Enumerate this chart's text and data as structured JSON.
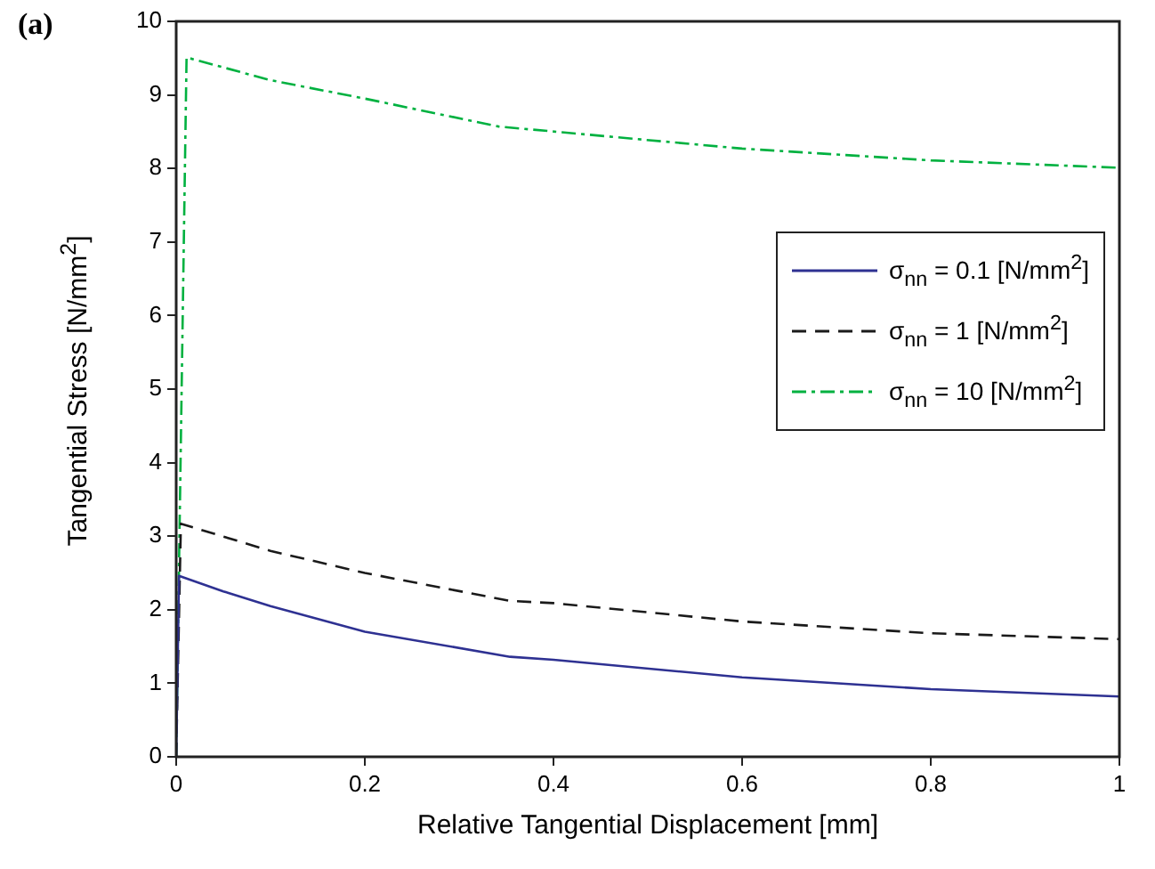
{
  "chart_data": {
    "type": "line",
    "xlabel": "Relative Tangential Displacement [mm]",
    "ylabel": "Tangential Stress [N/mm$^{2}$]",
    "annotations": [
      "(a)"
    ],
    "xlim": [
      0,
      1
    ],
    "ylim": [
      0,
      10
    ],
    "xticks": [
      0,
      0.2,
      0.4,
      0.6,
      0.8,
      1
    ],
    "yticks": [
      0,
      1,
      2,
      3,
      4,
      5,
      6,
      7,
      8,
      9,
      10
    ],
    "grid": false,
    "legend": "right",
    "marker": "none",
    "series": [
      {
        "name": "σ$_{nn}$ = 0.1 [N/mm$^{2}$]",
        "color": "#2e3192",
        "line_style": "solid",
        "x": [
          0,
          0.003,
          0.05,
          0.1,
          0.2,
          0.354,
          0.4,
          0.6,
          0.8,
          1
        ],
        "values": [
          0,
          2.46,
          2.25,
          2.05,
          1.7,
          1.36,
          1.32,
          1.08,
          0.92,
          0.82
        ]
      },
      {
        "name": "σ$_{nn}$ = 1 [N/mm$^{2}$]",
        "color": "#1a1a1a",
        "line_style": "dashed",
        "x": [
          0,
          0.005,
          0.1,
          0.2,
          0.354,
          0.4,
          0.6,
          0.8,
          1
        ],
        "values": [
          0,
          3.17,
          2.8,
          2.5,
          2.12,
          2.09,
          1.84,
          1.68,
          1.6
        ]
      },
      {
        "name": "σ$_{nn}$ = 10 [N/mm$^{2}$]",
        "color": "#00b140",
        "line_style": "dashdot",
        "x": [
          0,
          0.011,
          0.1,
          0.2,
          0.342,
          0.6,
          0.8,
          1
        ],
        "values": [
          0,
          9.51,
          9.2,
          8.95,
          8.57,
          8.27,
          8.11,
          8.01
        ]
      }
    ]
  }
}
